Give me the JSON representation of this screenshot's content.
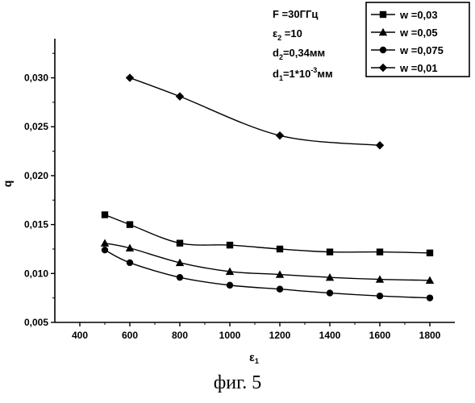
{
  "chart_data": {
    "type": "line",
    "xlabel": "ε",
    "xlabel_sub": "1",
    "ylabel": "q",
    "xlim": [
      300,
      1900
    ],
    "ylim": [
      0.005,
      0.034
    ],
    "xticks": [
      400,
      600,
      800,
      1000,
      1200,
      1400,
      1600,
      1800
    ],
    "yticks": [
      0.005,
      0.01,
      0.015,
      0.02,
      0.025,
      0.03
    ],
    "yticklabels": [
      "0,005",
      "0,010",
      "0,015",
      "0,020",
      "0,025",
      "0,030"
    ],
    "grid": false,
    "legend_position": "top-right",
    "parameters": [
      {
        "main": "F =30ГГц",
        "sub": "",
        "tail": ""
      },
      {
        "main": "ε",
        "sub": "2",
        "tail": " =10"
      },
      {
        "main": "d",
        "sub": "2",
        "tail": "=0,34мм"
      },
      {
        "main": "d",
        "sub": "1",
        "tail": "=1*10",
        "sup": "-3",
        "tail2": "мм"
      }
    ],
    "series": [
      {
        "name": "w =0,03",
        "marker": "square",
        "x": [
          500,
          600,
          800,
          1000,
          1200,
          1400,
          1600,
          1800
        ],
        "y": [
          0.016,
          0.015,
          0.0131,
          0.0129,
          0.0125,
          0.0122,
          0.0122,
          0.0121
        ]
      },
      {
        "name": "w =0,05",
        "marker": "triangle",
        "x": [
          500,
          600,
          800,
          1000,
          1200,
          1400,
          1600,
          1800
        ],
        "y": [
          0.0131,
          0.0126,
          0.0111,
          0.0102,
          0.0099,
          0.0096,
          0.0094,
          0.0093
        ]
      },
      {
        "name": "w =0,075",
        "marker": "circle",
        "x": [
          500,
          600,
          800,
          1000,
          1200,
          1400,
          1600,
          1800
        ],
        "y": [
          0.0124,
          0.0111,
          0.0096,
          0.0088,
          0.0084,
          0.008,
          0.0077,
          0.0075
        ]
      },
      {
        "name": "w =0,01",
        "marker": "diamond",
        "x": [
          600,
          800,
          1200,
          1600
        ],
        "y": [
          0.03,
          0.0281,
          0.0241,
          0.0231
        ]
      }
    ]
  },
  "caption": "фиг. 5"
}
